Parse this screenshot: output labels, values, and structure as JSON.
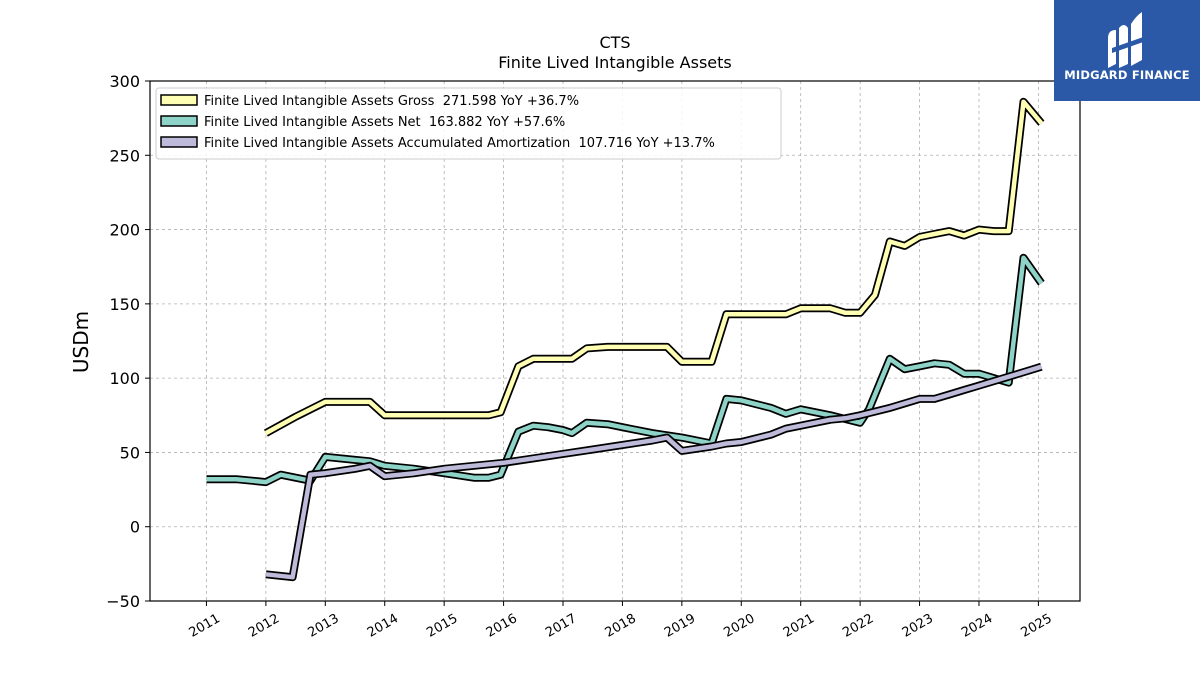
{
  "chart_data": {
    "type": "line",
    "title": "CTS",
    "subtitle": "Finite Lived Intangible Assets",
    "xlabel": "",
    "ylabel": "USDm",
    "ylim": [
      -50,
      300
    ],
    "xlim": [
      2010.05,
      2025.7
    ],
    "yticks": [
      -50,
      0,
      50,
      100,
      150,
      200,
      250,
      300
    ],
    "xticks": [
      2011,
      2012,
      2013,
      2014,
      2015,
      2016,
      2017,
      2018,
      2019,
      2020,
      2021,
      2022,
      2023,
      2024,
      2025
    ],
    "xtick_labels": [
      "2011",
      "2012",
      "2013",
      "2014",
      "2015",
      "2016",
      "2017",
      "2018",
      "2019",
      "2020",
      "2021",
      "2022",
      "2023",
      "2024",
      "2025"
    ],
    "ytick_labels": [
      "300",
      "250",
      "200",
      "150",
      "100",
      "50",
      "0",
      "−50"
    ],
    "grid": true,
    "legend_position": "top-left",
    "series": [
      {
        "name": "Finite Lived Intangible Assets Gross  271.598 YoY +36.7%",
        "color": "#ffffb3",
        "points": [
          [
            2012.0,
            63
          ],
          [
            2012.5,
            74
          ],
          [
            2013.0,
            84
          ],
          [
            2013.25,
            84
          ],
          [
            2013.75,
            84
          ],
          [
            2014.0,
            75
          ],
          [
            2014.5,
            75
          ],
          [
            2015.0,
            75
          ],
          [
            2015.5,
            75
          ],
          [
            2015.75,
            75
          ],
          [
            2015.95,
            77
          ],
          [
            2016.25,
            108
          ],
          [
            2016.5,
            113
          ],
          [
            2016.75,
            113
          ],
          [
            2017.0,
            113
          ],
          [
            2017.15,
            113
          ],
          [
            2017.4,
            120
          ],
          [
            2017.75,
            121
          ],
          [
            2018.0,
            121
          ],
          [
            2018.5,
            121
          ],
          [
            2018.75,
            121
          ],
          [
            2019.0,
            111
          ],
          [
            2019.5,
            111
          ],
          [
            2019.75,
            143
          ],
          [
            2020.0,
            143
          ],
          [
            2020.5,
            143
          ],
          [
            2020.75,
            143
          ],
          [
            2021.0,
            147
          ],
          [
            2021.25,
            147
          ],
          [
            2021.5,
            147
          ],
          [
            2021.75,
            144
          ],
          [
            2022.0,
            144
          ],
          [
            2022.25,
            156
          ],
          [
            2022.5,
            192
          ],
          [
            2022.75,
            189
          ],
          [
            2023.0,
            195
          ],
          [
            2023.25,
            197
          ],
          [
            2023.5,
            199
          ],
          [
            2023.75,
            196
          ],
          [
            2024.0,
            200
          ],
          [
            2024.25,
            199
          ],
          [
            2024.5,
            199
          ],
          [
            2024.75,
            286
          ],
          [
            2025.05,
            271.598
          ]
        ]
      },
      {
        "name": "Finite Lived Intangible Assets Net  163.882 YoY +57.6%",
        "color": "#8dd3c7",
        "points": [
          [
            2011.0,
            32
          ],
          [
            2011.5,
            32
          ],
          [
            2012.0,
            30
          ],
          [
            2012.25,
            35
          ],
          [
            2012.5,
            33
          ],
          [
            2012.75,
            31
          ],
          [
            2013.0,
            47
          ],
          [
            2013.5,
            45
          ],
          [
            2013.75,
            44
          ],
          [
            2014.0,
            41
          ],
          [
            2014.5,
            39
          ],
          [
            2015.0,
            36
          ],
          [
            2015.5,
            33
          ],
          [
            2015.75,
            33
          ],
          [
            2015.95,
            35
          ],
          [
            2016.25,
            64
          ],
          [
            2016.5,
            68
          ],
          [
            2016.75,
            67
          ],
          [
            2017.0,
            65
          ],
          [
            2017.15,
            63
          ],
          [
            2017.4,
            70
          ],
          [
            2017.75,
            69
          ],
          [
            2018.0,
            67
          ],
          [
            2018.5,
            63
          ],
          [
            2019.0,
            60
          ],
          [
            2019.5,
            56
          ],
          [
            2019.75,
            86
          ],
          [
            2020.0,
            85
          ],
          [
            2020.5,
            80
          ],
          [
            2020.75,
            76
          ],
          [
            2021.0,
            79
          ],
          [
            2021.5,
            75
          ],
          [
            2022.0,
            70
          ],
          [
            2022.15,
            79
          ],
          [
            2022.5,
            113
          ],
          [
            2022.75,
            106
          ],
          [
            2023.0,
            108
          ],
          [
            2023.25,
            110
          ],
          [
            2023.5,
            109
          ],
          [
            2023.75,
            103
          ],
          [
            2024.0,
            103
          ],
          [
            2024.5,
            97
          ],
          [
            2024.75,
            181
          ],
          [
            2025.05,
            163.882
          ]
        ]
      },
      {
        "name": "Finite Lived Intangible Assets Accumulated Amortization  107.716 YoY +13.7%",
        "color": "#bebada",
        "points": [
          [
            2012.0,
            -32
          ],
          [
            2012.45,
            -34
          ],
          [
            2012.75,
            35
          ],
          [
            2013.0,
            36
          ],
          [
            2013.5,
            39
          ],
          [
            2013.75,
            41
          ],
          [
            2014.0,
            34
          ],
          [
            2014.5,
            36
          ],
          [
            2015.0,
            39
          ],
          [
            2015.5,
            41
          ],
          [
            2016.0,
            43
          ],
          [
            2016.5,
            46
          ],
          [
            2017.0,
            49
          ],
          [
            2017.5,
            52
          ],
          [
            2018.0,
            55
          ],
          [
            2018.5,
            58
          ],
          [
            2018.75,
            60
          ],
          [
            2019.0,
            51
          ],
          [
            2019.5,
            54
          ],
          [
            2019.75,
            56
          ],
          [
            2020.0,
            57
          ],
          [
            2020.5,
            62
          ],
          [
            2020.75,
            66
          ],
          [
            2021.0,
            68
          ],
          [
            2021.5,
            72
          ],
          [
            2021.75,
            73
          ],
          [
            2022.0,
            75
          ],
          [
            2022.5,
            80
          ],
          [
            2022.75,
            83
          ],
          [
            2023.0,
            86
          ],
          [
            2023.25,
            86
          ],
          [
            2023.5,
            89
          ],
          [
            2023.75,
            92
          ],
          [
            2024.0,
            95
          ],
          [
            2024.5,
            101
          ],
          [
            2024.75,
            104
          ],
          [
            2025.05,
            107.716
          ]
        ]
      }
    ]
  },
  "logo": {
    "text": "MIDGARD FINANCE",
    "background": "#2b59a8"
  }
}
